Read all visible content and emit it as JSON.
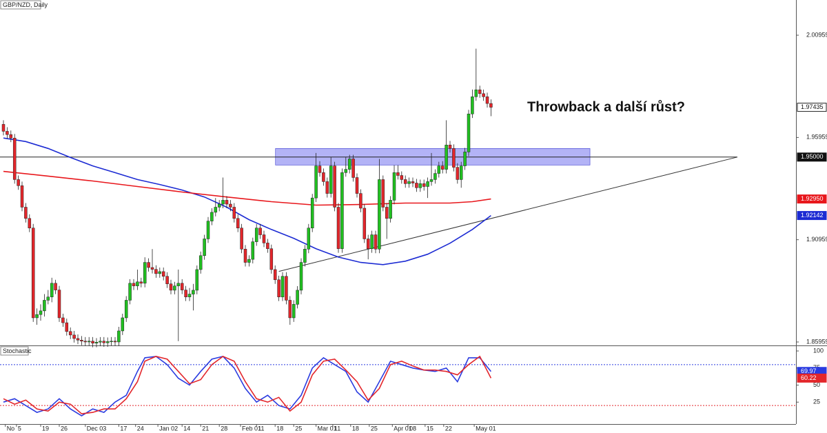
{
  "chart_data": [
    {
      "type": "candlestick",
      "title": "GBP/NZD, Daily",
      "annotation": "Throwback a další růst?",
      "up_color": "#21c021",
      "down_color": "#e3262b",
      "xlim": [
        -0.926,
        212.96
      ],
      "ylim": [
        1.8579,
        2.0268
      ],
      "yticks": [
        1.85959,
        1.90959,
        1.95959,
        2.00959
      ],
      "candles": [
        [
          1.966,
          1.968,
          1.9606,
          1.9626
        ],
        [
          1.9626,
          1.9646,
          1.959,
          1.961
        ],
        [
          1.961,
          1.963,
          1.9573,
          1.9593
        ],
        [
          1.9593,
          1.9613,
          1.937,
          1.939
        ],
        [
          1.939,
          1.941,
          1.934,
          1.936
        ],
        [
          1.936,
          1.938,
          1.9235,
          1.9255
        ],
        [
          1.9255,
          1.9275,
          1.918,
          1.92
        ],
        [
          1.92,
          1.922,
          1.9133,
          1.9153
        ],
        [
          1.9153,
          1.9173,
          1.8694,
          1.8714
        ],
        [
          1.8714,
          1.876,
          1.868,
          1.873
        ],
        [
          1.873,
          1.878,
          1.87,
          1.8748
        ],
        [
          1.8748,
          1.883,
          1.872,
          1.88
        ],
        [
          1.88,
          1.885,
          1.878,
          1.8816
        ],
        [
          1.8816,
          1.891,
          1.879,
          1.8883
        ],
        [
          1.8883,
          1.89,
          1.883,
          1.885
        ],
        [
          1.885,
          1.887,
          1.8694,
          1.8714
        ],
        [
          1.8714,
          1.8734,
          1.867,
          1.869
        ],
        [
          1.869,
          1.871,
          1.8627,
          1.8647
        ],
        [
          1.8647,
          1.8667,
          1.861,
          1.863
        ],
        [
          1.863,
          1.865,
          1.8593,
          1.8613
        ],
        [
          1.8613,
          1.8633,
          1.8585,
          1.8605
        ],
        [
          1.8605,
          1.8625,
          1.858,
          1.86
        ],
        [
          1.86,
          1.862,
          1.8576,
          1.8596
        ],
        [
          1.8596,
          1.862,
          1.8576,
          1.86
        ],
        [
          1.86,
          1.862,
          1.857,
          1.859
        ],
        [
          1.859,
          1.8615,
          1.857,
          1.8595
        ],
        [
          1.8595,
          1.862,
          1.8575,
          1.86
        ],
        [
          1.86,
          1.862,
          1.8572,
          1.8592
        ],
        [
          1.8592,
          1.8618,
          1.8572,
          1.8598
        ],
        [
          1.8598,
          1.862,
          1.8578,
          1.86
        ],
        [
          1.86,
          1.862,
          1.8576,
          1.8596
        ],
        [
          1.8596,
          1.867,
          1.8576,
          1.865
        ],
        [
          1.865,
          1.8734,
          1.863,
          1.8714
        ],
        [
          1.8714,
          1.882,
          1.8694,
          1.88
        ],
        [
          1.88,
          1.8903,
          1.878,
          1.8883
        ],
        [
          1.8883,
          1.8903,
          1.885,
          1.887
        ],
        [
          1.887,
          1.895,
          1.885,
          1.889
        ],
        [
          1.889,
          1.891,
          1.8863,
          1.8883
        ],
        [
          1.8883,
          1.901,
          1.8863,
          1.8985
        ],
        [
          1.8985,
          1.9005,
          1.894,
          1.896
        ],
        [
          1.896,
          1.905,
          1.8931,
          1.8951
        ],
        [
          1.8951,
          1.8971,
          1.891,
          1.893
        ],
        [
          1.893,
          1.896,
          1.891,
          1.894
        ],
        [
          1.894,
          1.896,
          1.8897,
          1.8917
        ],
        [
          1.8917,
          1.8937,
          1.886,
          1.888
        ],
        [
          1.888,
          1.89,
          1.8829,
          1.8849
        ],
        [
          1.8849,
          1.889,
          1.8829,
          1.887
        ],
        [
          1.887,
          1.895,
          1.86,
          1.8883
        ],
        [
          1.8883,
          1.8903,
          1.883,
          1.885
        ],
        [
          1.885,
          1.887,
          1.8796,
          1.8816
        ],
        [
          1.8816,
          1.886,
          1.8796,
          1.883
        ],
        [
          1.883,
          1.888,
          1.875,
          1.8849
        ],
        [
          1.8849,
          1.897,
          1.8829,
          1.895
        ],
        [
          1.895,
          1.9038,
          1.893,
          1.9018
        ],
        [
          1.9018,
          1.912,
          1.8998,
          1.91
        ],
        [
          1.91,
          1.9207,
          1.908,
          1.9187
        ],
        [
          1.9187,
          1.925,
          1.9167,
          1.923
        ],
        [
          1.923,
          1.93,
          1.921,
          1.9255
        ],
        [
          1.9255,
          1.929,
          1.9235,
          1.927
        ],
        [
          1.927,
          1.94,
          1.925,
          1.9289
        ],
        [
          1.9289,
          1.9309,
          1.925,
          1.927
        ],
        [
          1.927,
          1.929,
          1.9235,
          1.9255
        ],
        [
          1.9255,
          1.9275,
          1.918,
          1.92
        ],
        [
          1.92,
          1.922,
          1.9133,
          1.9153
        ],
        [
          1.9153,
          1.9173,
          1.903,
          1.905
        ],
        [
          1.905,
          1.907,
          1.8965,
          1.8985
        ],
        [
          1.8985,
          1.902,
          1.8965,
          1.9
        ],
        [
          1.9,
          1.9106,
          1.898,
          1.9086
        ],
        [
          1.9086,
          1.9173,
          1.9066,
          1.9153
        ],
        [
          1.9153,
          1.9173,
          1.91,
          1.912
        ],
        [
          1.912,
          1.914,
          1.906,
          1.908
        ],
        [
          1.908,
          1.91,
          1.9032,
          1.9052
        ],
        [
          1.9052,
          1.9072,
          1.893,
          1.895
        ],
        [
          1.895,
          1.897,
          1.888,
          1.89
        ],
        [
          1.89,
          1.892,
          1.8796,
          1.8816
        ],
        [
          1.8816,
          1.8937,
          1.8796,
          1.8917
        ],
        [
          1.8917,
          1.8937,
          1.878,
          1.88
        ],
        [
          1.88,
          1.882,
          1.868,
          1.8714
        ],
        [
          1.8714,
          1.88,
          1.8694,
          1.878
        ],
        [
          1.878,
          1.8869,
          1.876,
          1.8849
        ],
        [
          1.8849,
          1.9005,
          1.8829,
          1.8985
        ],
        [
          1.8985,
          1.907,
          1.8965,
          1.905
        ],
        [
          1.905,
          1.9173,
          1.903,
          1.9153
        ],
        [
          1.9153,
          1.932,
          1.9133,
          1.93
        ],
        [
          1.93,
          1.952,
          1.928,
          1.9457
        ],
        [
          1.9457,
          1.948,
          1.9404,
          1.9424
        ],
        [
          1.9424,
          1.9444,
          1.936,
          1.938
        ],
        [
          1.938,
          1.94,
          1.9302,
          1.9322
        ],
        [
          1.9322,
          1.95,
          1.9302,
          1.9457
        ],
        [
          1.9457,
          1.9477,
          1.9235,
          1.9255
        ],
        [
          1.9255,
          1.9275,
          1.9032,
          1.9052
        ],
        [
          1.9052,
          1.9444,
          1.9032,
          1.9424
        ],
        [
          1.9424,
          1.95,
          1.9404,
          1.944
        ],
        [
          1.944,
          1.9511,
          1.942,
          1.9491
        ],
        [
          1.9491,
          1.9511,
          1.938,
          1.94
        ],
        [
          1.94,
          1.942,
          1.9302,
          1.9322
        ],
        [
          1.9322,
          1.9342,
          1.923,
          1.925
        ],
        [
          1.925,
          1.927,
          1.908,
          1.91
        ],
        [
          1.91,
          1.912,
          1.9,
          1.9052
        ],
        [
          1.9052,
          1.914,
          1.9032,
          1.912
        ],
        [
          1.912,
          1.914,
          1.903,
          1.905
        ],
        [
          1.905,
          1.9491,
          1.903,
          1.939
        ],
        [
          1.939,
          1.941,
          1.9235,
          1.9255
        ],
        [
          1.9255,
          1.9275,
          1.91,
          1.92
        ],
        [
          1.92,
          1.9309,
          1.918,
          1.9289
        ],
        [
          1.9289,
          1.946,
          1.9269,
          1.9424
        ],
        [
          1.9424,
          1.946,
          1.939,
          1.941
        ],
        [
          1.941,
          1.943,
          1.937,
          1.939
        ],
        [
          1.939,
          1.941,
          1.935,
          1.937
        ],
        [
          1.937,
          1.94,
          1.935,
          1.938
        ],
        [
          1.938,
          1.94,
          1.9353,
          1.9373
        ],
        [
          1.9373,
          1.9393,
          1.933,
          1.935
        ],
        [
          1.935,
          1.939,
          1.933,
          1.937
        ],
        [
          1.937,
          1.939,
          1.9336,
          1.9356
        ],
        [
          1.9356,
          1.94,
          1.93,
          1.938
        ],
        [
          1.938,
          1.952,
          1.936,
          1.939
        ],
        [
          1.939,
          1.944,
          1.937,
          1.942
        ],
        [
          1.942,
          1.9477,
          1.94,
          1.9457
        ],
        [
          1.9457,
          1.948,
          1.942,
          1.944
        ],
        [
          1.944,
          1.968,
          1.942,
          1.9559
        ],
        [
          1.9559,
          1.9579,
          1.9522,
          1.9542
        ],
        [
          1.9542,
          1.9562,
          1.943,
          1.945
        ],
        [
          1.945,
          1.947,
          1.937,
          1.939
        ],
        [
          1.939,
          1.9477,
          1.935,
          1.9457
        ],
        [
          1.9457,
          1.9545,
          1.9437,
          1.9525
        ],
        [
          1.9525,
          1.9731,
          1.9505,
          1.9711
        ],
        [
          1.9711,
          1.983,
          1.9691,
          1.9795
        ],
        [
          1.9795,
          2.003,
          1.9775,
          1.9829
        ],
        [
          1.9829,
          1.9849,
          1.979,
          1.981
        ],
        [
          1.981,
          1.983,
          1.9775,
          1.9795
        ],
        [
          1.9795,
          1.9815,
          1.9742,
          1.9762
        ],
        [
          1.9762,
          1.9782,
          1.97,
          1.97435
        ]
      ],
      "series": [
        {
          "color": "#1c2bd3",
          "x": [
            0,
            6,
            12,
            18,
            24,
            30,
            36,
            42,
            48,
            54,
            60,
            66,
            72,
            78,
            84,
            90,
            96,
            102,
            108,
            114,
            120,
            126,
            131
          ],
          "values": [
            1.9593,
            1.9576,
            1.9542,
            1.9498,
            1.9457,
            1.9424,
            1.939,
            1.9366,
            1.9339,
            1.9305,
            1.9255,
            1.9194,
            1.9146,
            1.9103,
            1.9052,
            1.9011,
            1.8985,
            1.8974,
            1.8991,
            1.9025,
            1.9079,
            1.9146,
            1.92142
          ]
        },
        {
          "color": "#e8161b",
          "x": [
            0,
            12,
            24,
            36,
            48,
            60,
            72,
            84,
            96,
            108,
            120,
            126,
            131
          ],
          "values": [
            1.943,
            1.9407,
            1.9383,
            1.9356,
            1.9329,
            1.9305,
            1.9282,
            1.9265,
            1.9268,
            1.9275,
            1.9275,
            1.9282,
            1.9295
          ],
          "value_labels": [
            null,
            null,
            null,
            null,
            null,
            null,
            null,
            null,
            null,
            null,
            null,
            null,
            "1.92950"
          ]
        }
      ],
      "levels": [
        {
          "value": 1.95,
          "label": "1.95000"
        }
      ],
      "trendline": {
        "x": [
          74,
          197.2
        ],
        "values": [
          1.8941,
          1.95
        ]
      },
      "zone": {
        "x": [
          73.1,
          157.6
        ],
        "values": [
          1.9461,
          1.9542
        ],
        "color": "#7474ef"
      }
    },
    {
      "type": "line",
      "title": "Stochastic",
      "xlim": [
        -0.926,
        212.96
      ],
      "ylim": [
        -7.1,
        107.1
      ],
      "yticks": [
        25,
        50,
        75,
        100
      ],
      "levels": [
        {
          "value": 80,
          "color": "#2a3be0"
        },
        {
          "value": 20,
          "color": "#e3262b"
        }
      ],
      "xticks": [
        {
          "value": 0.5,
          "label": "No"
        },
        {
          "value": 3.5,
          "label": "5"
        },
        {
          "value": 10,
          "label": "19"
        },
        {
          "value": 15,
          "label": "26"
        },
        {
          "value": 22,
          "label": "Dec 03"
        },
        {
          "value": 31,
          "label": "17"
        },
        {
          "value": 35.5,
          "label": "24"
        },
        {
          "value": 41.5,
          "label": "Jan 02"
        },
        {
          "value": 48,
          "label": "14"
        },
        {
          "value": 53,
          "label": "21"
        },
        {
          "value": 58,
          "label": "28"
        },
        {
          "value": 63.7,
          "label": "Feb 01"
        },
        {
          "value": 68,
          "label": "11"
        },
        {
          "value": 73,
          "label": "18"
        },
        {
          "value": 78,
          "label": "25"
        },
        {
          "value": 84,
          "label": "Mar 01"
        },
        {
          "value": 88.5,
          "label": "11"
        },
        {
          "value": 93.3,
          "label": "18"
        },
        {
          "value": 98.3,
          "label": "25"
        },
        {
          "value": 104.5,
          "label": "Apr 01"
        },
        {
          "value": 108.7,
          "label": "08"
        },
        {
          "value": 113.3,
          "label": "15"
        },
        {
          "value": 118.3,
          "label": "22"
        },
        {
          "value": 126.5,
          "label": "May 01"
        }
      ],
      "series": [
        {
          "color": "#2a3be0",
          "x": [
            0,
            3,
            6,
            9,
            12,
            15,
            18,
            21,
            24,
            27,
            30,
            33,
            36,
            38,
            41,
            44,
            47,
            50,
            53,
            56,
            59,
            62,
            65,
            68,
            71,
            74,
            77,
            80,
            83,
            86,
            89,
            92,
            95,
            98,
            101,
            104,
            107,
            110,
            113,
            116,
            119,
            122,
            125,
            128,
            131
          ],
          "values": [
            25,
            30,
            20,
            10,
            15,
            30,
            15,
            5,
            15,
            10,
            25,
            35,
            70,
            90,
            92,
            80,
            60,
            50,
            70,
            88,
            92,
            75,
            45,
            25,
            35,
            20,
            15,
            35,
            75,
            90,
            80,
            70,
            40,
            25,
            55,
            85,
            80,
            75,
            72,
            70,
            75,
            55,
            90,
            90,
            69.97
          ]
        },
        {
          "color": "#e3262b",
          "x": [
            0,
            3,
            6,
            9,
            12,
            15,
            18,
            21,
            24,
            27,
            30,
            33,
            36,
            38,
            41,
            44,
            47,
            50,
            53,
            56,
            59,
            62,
            65,
            68,
            71,
            74,
            77,
            80,
            83,
            86,
            89,
            92,
            95,
            98,
            101,
            104,
            107,
            110,
            113,
            116,
            119,
            122,
            125,
            128,
            131
          ],
          "values": [
            30,
            22,
            28,
            15,
            12,
            25,
            22,
            8,
            10,
            15,
            15,
            30,
            55,
            85,
            92,
            88,
            70,
            52,
            58,
            80,
            92,
            85,
            55,
            30,
            25,
            32,
            12,
            25,
            65,
            85,
            88,
            72,
            55,
            28,
            45,
            80,
            85,
            78,
            72,
            72,
            70,
            65,
            80,
            92,
            60.22
          ]
        }
      ]
    }
  ]
}
